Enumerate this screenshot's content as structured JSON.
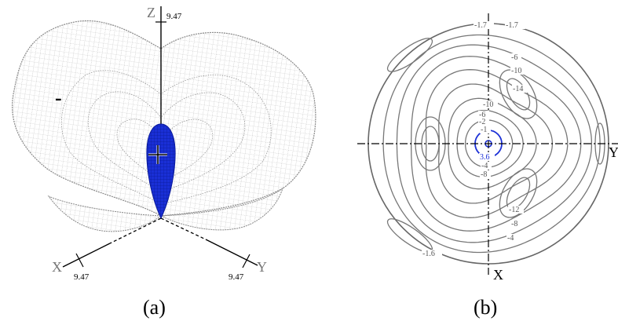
{
  "panel_a": {
    "caption": "(a)",
    "axis_z": "Z",
    "axis_x": "X",
    "axis_y": "Y",
    "tick_z": "9.47",
    "tick_x": "9.47",
    "tick_y": "9.47",
    "sign_label": "-"
  },
  "panel_b": {
    "caption": "(b)",
    "axis_y": "Y",
    "axis_x": "X",
    "labels": [
      {
        "text": "-1.7",
        "color": "#555555"
      },
      {
        "text": "-1.7",
        "color": "#555555"
      },
      {
        "text": "-6",
        "color": "#555555"
      },
      {
        "text": "-10",
        "color": "#555555"
      },
      {
        "text": "-14",
        "color": "#555555"
      },
      {
        "text": "-10",
        "color": "#555555"
      },
      {
        "text": "-6",
        "color": "#555555"
      },
      {
        "text": "-2",
        "color": "#555555"
      },
      {
        "text": "-1",
        "color": "#555555"
      },
      {
        "text": "3.6",
        "color": "#1a2fd6"
      },
      {
        "text": "-4",
        "color": "#555555"
      },
      {
        "text": "-8",
        "color": "#555555"
      },
      {
        "text": "-12",
        "color": "#555555"
      },
      {
        "text": "-8",
        "color": "#555555"
      },
      {
        "text": "-4",
        "color": "#555555"
      },
      {
        "text": "-1.6",
        "color": "#555555"
      }
    ]
  },
  "colors": {
    "mesh": "#777777",
    "lobe": "#1a2fd6",
    "contour": "#777777",
    "axis": "#000000"
  }
}
